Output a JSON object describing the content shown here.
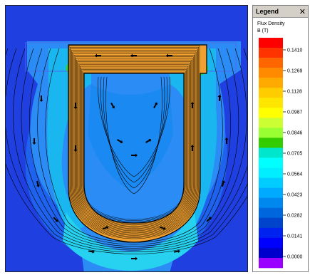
{
  "legend": {
    "title": "Legend",
    "close_glyph": "✕",
    "quantity": "Flux Density",
    "unit": "B (T)",
    "tick_labels": [
      "0.1410",
      "0.1269",
      "0.1128",
      "0.0987",
      "0.0846",
      "0.0705",
      "0.0564",
      "0.0423",
      "0.0282",
      "0.0141",
      "0.0000"
    ],
    "colors": [
      "#ff0000",
      "#ff3300",
      "#ff6600",
      "#ff8a00",
      "#ffaa00",
      "#ffcc00",
      "#ffe600",
      "#ffff00",
      "#ccff33",
      "#99ff33",
      "#33cc00",
      "#00e6cc",
      "#00ffff",
      "#00eeff",
      "#00ccff",
      "#00aaff",
      "#0088ee",
      "#0066dd",
      "#0044cc",
      "#0022ee",
      "#0000ff",
      "#0000cc",
      "#9900ff"
    ]
  },
  "viewport": {
    "background_color": "#1f3fe0",
    "magnet_color": "#ffaa22",
    "contour_color": "#000000"
  }
}
